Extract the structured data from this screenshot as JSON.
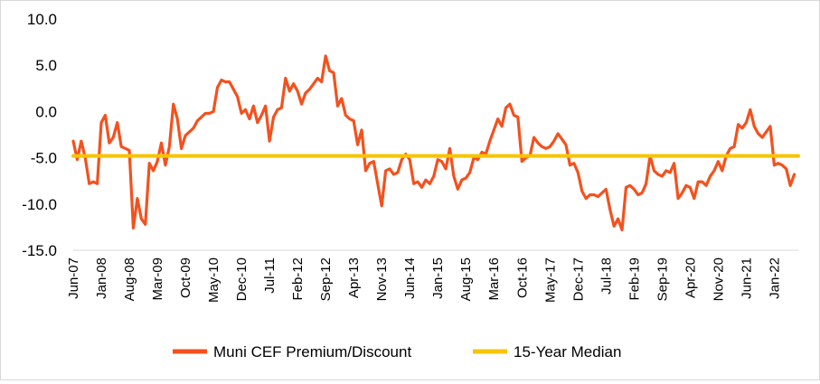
{
  "chart_data": {
    "type": "line",
    "title": "",
    "xlabel": "",
    "ylabel": "",
    "ylim": [
      -15,
      10
    ],
    "yticks": [
      "10.0",
      "5.0",
      "0.0",
      "-5.0",
      "-10.0",
      "-15.0"
    ],
    "ytick_values": [
      10,
      5,
      0,
      -5,
      -10,
      -15
    ],
    "x_tick_labels": [
      "Jun-07",
      "Jan-08",
      "Aug-08",
      "Mar-09",
      "Oct-09",
      "May-10",
      "Dec-10",
      "Jul-11",
      "Feb-12",
      "Sep-12",
      "Apr-13",
      "Nov-13",
      "Jun-14",
      "Jan-15",
      "Aug-15",
      "Mar-16",
      "Oct-16",
      "May-17",
      "Dec-17",
      "Jul-18",
      "Feb-19",
      "Sep-19",
      "Apr-20",
      "Nov-20",
      "Jun-21",
      "Jan-22"
    ],
    "x_start_month": 0,
    "x_end_month": 181,
    "series": [
      {
        "name": "Muni CEF Premium/Discount",
        "color": "#f4511e",
        "points": [
          [
            0,
            -3.2
          ],
          [
            1,
            -5.2
          ],
          [
            2,
            -3.2
          ],
          [
            3,
            -5
          ],
          [
            4,
            -7.8
          ],
          [
            5,
            -7.6
          ],
          [
            6,
            -7.8
          ],
          [
            7,
            -1.2
          ],
          [
            8,
            -0.4
          ],
          [
            9,
            -3.4
          ],
          [
            10,
            -2.8
          ],
          [
            11,
            -1.2
          ],
          [
            12,
            -3.8
          ],
          [
            13,
            -4.0
          ],
          [
            14,
            -4.2
          ],
          [
            15,
            -12.6
          ],
          [
            16,
            -9.4
          ],
          [
            17,
            -11.6
          ],
          [
            18,
            -12.2
          ],
          [
            19,
            -5.6
          ],
          [
            20,
            -6.4
          ],
          [
            21,
            -5.4
          ],
          [
            22,
            -3.4
          ],
          [
            23,
            -5.8
          ],
          [
            24,
            -3.8
          ],
          [
            25,
            0.8
          ],
          [
            26,
            -0.8
          ],
          [
            27,
            -4.0
          ],
          [
            28,
            -2.6
          ],
          [
            29,
            -2.2
          ],
          [
            30,
            -1.8
          ],
          [
            31,
            -1.0
          ],
          [
            32,
            -0.6
          ],
          [
            33,
            -0.2
          ],
          [
            34,
            -0.2
          ],
          [
            35,
            0
          ],
          [
            36,
            2.6
          ],
          [
            37,
            3.4
          ],
          [
            38,
            3.2
          ],
          [
            39,
            3.2
          ],
          [
            40,
            2.4
          ],
          [
            41,
            1.6
          ],
          [
            42,
            -0.2
          ],
          [
            43,
            0.2
          ],
          [
            44,
            -0.8
          ],
          [
            45,
            0.6
          ],
          [
            46,
            -1.2
          ],
          [
            47,
            -0.4
          ],
          [
            48,
            0.6
          ],
          [
            49,
            -3.2
          ],
          [
            50,
            -0.6
          ],
          [
            51,
            0.2
          ],
          [
            52,
            0.4
          ],
          [
            53,
            3.6
          ],
          [
            54,
            2.2
          ],
          [
            55,
            3.0
          ],
          [
            56,
            2.2
          ],
          [
            57,
            0.8
          ],
          [
            58,
            2.0
          ],
          [
            59,
            2.4
          ],
          [
            60,
            3.0
          ],
          [
            61,
            3.6
          ],
          [
            62,
            3.2
          ],
          [
            63,
            6.0
          ],
          [
            64,
            4.4
          ],
          [
            65,
            4.2
          ],
          [
            66,
            0.6
          ],
          [
            67,
            1.4
          ],
          [
            68,
            -0.4
          ],
          [
            69,
            -0.8
          ],
          [
            70,
            -1.0
          ],
          [
            71,
            -3.6
          ],
          [
            72,
            -2.0
          ],
          [
            73,
            -6.4
          ],
          [
            74,
            -5.6
          ],
          [
            75,
            -5.4
          ],
          [
            76,
            -7.8
          ],
          [
            77,
            -10.2
          ],
          [
            78,
            -6.4
          ],
          [
            79,
            -6.2
          ],
          [
            80,
            -6.8
          ],
          [
            81,
            -6.6
          ],
          [
            82,
            -5.2
          ],
          [
            83,
            -4.6
          ],
          [
            84,
            -5.2
          ],
          [
            85,
            -7.8
          ],
          [
            86,
            -7.6
          ],
          [
            87,
            -8.2
          ],
          [
            88,
            -7.4
          ],
          [
            89,
            -7.8
          ],
          [
            90,
            -7.0
          ],
          [
            91,
            -5.2
          ],
          [
            92,
            -5.4
          ],
          [
            93,
            -6.2
          ],
          [
            94,
            -4.0
          ],
          [
            95,
            -7.0
          ],
          [
            96,
            -8.4
          ],
          [
            97,
            -7.4
          ],
          [
            98,
            -7.2
          ],
          [
            99,
            -6.6
          ],
          [
            100,
            -5.0
          ],
          [
            101,
            -5.2
          ],
          [
            102,
            -4.4
          ],
          [
            103,
            -4.6
          ],
          [
            104,
            -3.2
          ],
          [
            105,
            -2.0
          ],
          [
            106,
            -0.8
          ],
          [
            107,
            -1.6
          ],
          [
            108,
            0.4
          ],
          [
            109,
            0.8
          ],
          [
            110,
            -0.4
          ],
          [
            111,
            -0.6
          ],
          [
            112,
            -5.4
          ],
          [
            113,
            -5.0
          ],
          [
            114,
            -4.8
          ],
          [
            115,
            -2.8
          ],
          [
            116,
            -3.4
          ],
          [
            117,
            -3.8
          ],
          [
            118,
            -4.0
          ],
          [
            119,
            -3.8
          ],
          [
            120,
            -3.2
          ],
          [
            121,
            -2.4
          ],
          [
            122,
            -3.0
          ],
          [
            123,
            -3.6
          ],
          [
            124,
            -5.8
          ],
          [
            125,
            -5.6
          ],
          [
            126,
            -6.6
          ],
          [
            127,
            -8.6
          ],
          [
            128,
            -9.4
          ],
          [
            129,
            -9.0
          ],
          [
            130,
            -9.0
          ],
          [
            131,
            -9.2
          ],
          [
            132,
            -8.8
          ],
          [
            133,
            -8.4
          ],
          [
            134,
            -10.6
          ],
          [
            135,
            -12.4
          ],
          [
            136,
            -11.6
          ],
          [
            137,
            -12.8
          ],
          [
            138,
            -8.2
          ],
          [
            139,
            -8.0
          ],
          [
            140,
            -8.4
          ],
          [
            141,
            -9.0
          ],
          [
            142,
            -8.8
          ],
          [
            143,
            -7.8
          ],
          [
            144,
            -4.8
          ],
          [
            145,
            -6.4
          ],
          [
            146,
            -6.8
          ],
          [
            147,
            -7.0
          ],
          [
            148,
            -6.4
          ],
          [
            149,
            -6.6
          ],
          [
            150,
            -5.6
          ],
          [
            151,
            -9.4
          ],
          [
            152,
            -8.8
          ],
          [
            153,
            -8.0
          ],
          [
            154,
            -8.2
          ],
          [
            155,
            -9.4
          ],
          [
            156,
            -7.6
          ],
          [
            157,
            -7.6
          ],
          [
            158,
            -8.0
          ],
          [
            159,
            -7.0
          ],
          [
            160,
            -6.4
          ],
          [
            161,
            -5.4
          ],
          [
            162,
            -6.4
          ],
          [
            163,
            -4.8
          ],
          [
            164,
            -4.0
          ],
          [
            165,
            -3.8
          ],
          [
            166,
            -1.4
          ],
          [
            167,
            -1.8
          ],
          [
            168,
            -1.2
          ],
          [
            169,
            0.2
          ],
          [
            170,
            -1.6
          ],
          [
            171,
            -2.4
          ],
          [
            172,
            -2.8
          ],
          [
            173,
            -2.2
          ],
          [
            174,
            -1.6
          ],
          [
            175,
            -5.8
          ],
          [
            176,
            -5.6
          ],
          [
            177,
            -5.8
          ],
          [
            178,
            -6.2
          ],
          [
            179,
            -8.0
          ],
          [
            180,
            -6.8
          ]
        ]
      },
      {
        "name": "15-Year Median",
        "color": "#f7c400",
        "points": [
          [
            0,
            -4.8
          ],
          [
            181,
            -4.8
          ]
        ]
      }
    ],
    "legend_position": "bottom"
  }
}
